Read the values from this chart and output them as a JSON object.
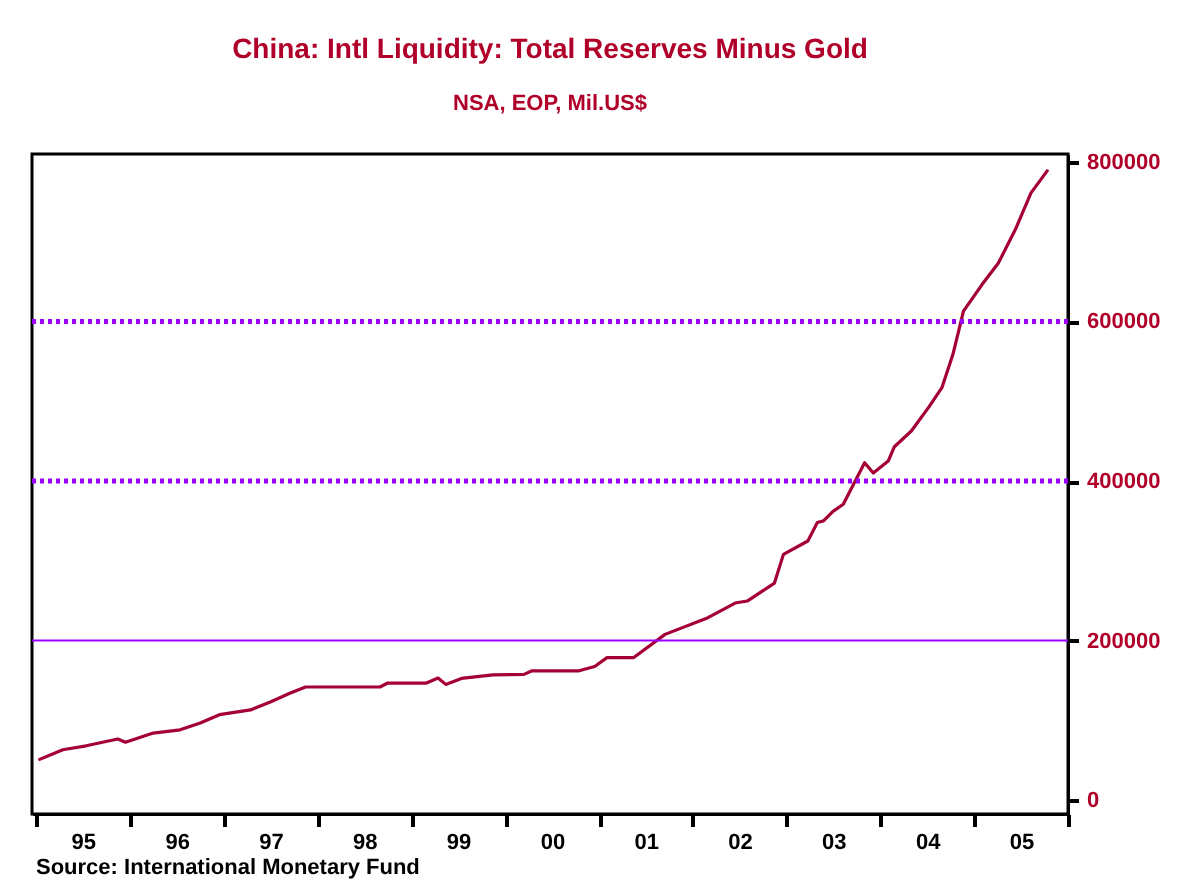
{
  "chart_data": {
    "type": "line",
    "title": "China: Intl Liquidity: Total Reserves Minus Gold",
    "subtitle": "NSA, EOP, Mil.US$",
    "annotations": [
      "Source:  International Monetary Fund"
    ],
    "x": [
      "1995-01-15",
      "1995-04-15",
      "1995-07-15",
      "1995-11-15",
      "1995-12-15",
      "1996-04-01",
      "1996-07-15",
      "1996-10-01",
      "1996-12-15",
      "1997-04-15",
      "1997-07-01",
      "1997-09-15",
      "1997-11-15",
      "1998-09-01",
      "1998-10-01",
      "1999-03-01",
      "1999-04-15",
      "1999-05-15",
      "1999-07-15",
      "1999-11-15",
      "2000-03-15",
      "2000-04-15",
      "2000-10-15",
      "2000-12-15",
      "2001-02-01",
      "2001-05-15",
      "2001-09-15",
      "2002-03-01",
      "2002-06-15",
      "2002-08-01",
      "2002-11-15",
      "2002-12-20",
      "2003-03-25",
      "2003-05-01",
      "2003-05-25",
      "2003-07-01",
      "2003-08-10",
      "2003-11-01",
      "2003-12-05",
      "2004-02-01",
      "2004-02-25",
      "2004-05-01",
      "2004-07-10",
      "2004-08-28",
      "2004-10-10",
      "2004-11-20",
      "2005-02-01",
      "2005-04-05",
      "2005-06-10",
      "2005-08-10",
      "2005-10-12"
    ],
    "series": [
      {
        "color": "#a50034",
        "values": [
          51000,
          63000,
          68000,
          76500,
          72500,
          84000,
          88000,
          96500,
          107000,
          113000,
          123000,
          134000,
          141700,
          141700,
          146700,
          146700,
          153000,
          145000,
          152500,
          157000,
          157600,
          162000,
          162000,
          167500,
          178500,
          178500,
          207700,
          228700,
          247000,
          249500,
          272000,
          308000,
          324800,
          348000,
          350000,
          362000,
          370800,
          423000,
          410000,
          425000,
          443000,
          462700,
          493600,
          517000,
          558800,
          613000,
          646600,
          673400,
          715300,
          761200,
          788800
        ]
      }
    ],
    "xlim": [
      "1994-12-16",
      "2006-01-01"
    ],
    "ylim": [
      -17500,
      810000
    ],
    "xticks": [
      {
        "value": "1995-01-01",
        "label": null
      },
      {
        "value": "1995-07-02",
        "label": "95"
      },
      {
        "value": "1996-01-01",
        "label": null
      },
      {
        "value": "1996-07-02",
        "label": "96"
      },
      {
        "value": "1997-01-01",
        "label": null
      },
      {
        "value": "1997-07-02",
        "label": "97"
      },
      {
        "value": "1998-01-01",
        "label": null
      },
      {
        "value": "1998-07-02",
        "label": "98"
      },
      {
        "value": "1999-01-01",
        "label": null
      },
      {
        "value": "1999-07-02",
        "label": "99"
      },
      {
        "value": "2000-01-01",
        "label": null
      },
      {
        "value": "2000-07-02",
        "label": "00"
      },
      {
        "value": "2001-01-01",
        "label": null
      },
      {
        "value": "2001-07-02",
        "label": "01"
      },
      {
        "value": "2002-01-01",
        "label": null
      },
      {
        "value": "2002-07-02",
        "label": "02"
      },
      {
        "value": "2003-01-01",
        "label": null
      },
      {
        "value": "2003-07-02",
        "label": "03"
      },
      {
        "value": "2004-01-01",
        "label": null
      },
      {
        "value": "2004-07-02",
        "label": "04"
      },
      {
        "value": "2005-01-01",
        "label": null
      },
      {
        "value": "2005-07-02",
        "label": "05"
      },
      {
        "value": "2006-01-01",
        "label": null
      }
    ],
    "yticks": [
      0,
      200000,
      400000,
      600000,
      800000
    ],
    "ref_lines": [
      {
        "axis": "y",
        "value": 200000,
        "color": "#9900ff",
        "line_style": "solid"
      },
      {
        "axis": "y",
        "value": 400000,
        "color": "#9900ff",
        "line_style": "dotted"
      },
      {
        "axis": "y",
        "value": 600000,
        "color": "#9900ff",
        "line_style": "dotted"
      }
    ],
    "marker": "none",
    "line_style": "solid"
  }
}
